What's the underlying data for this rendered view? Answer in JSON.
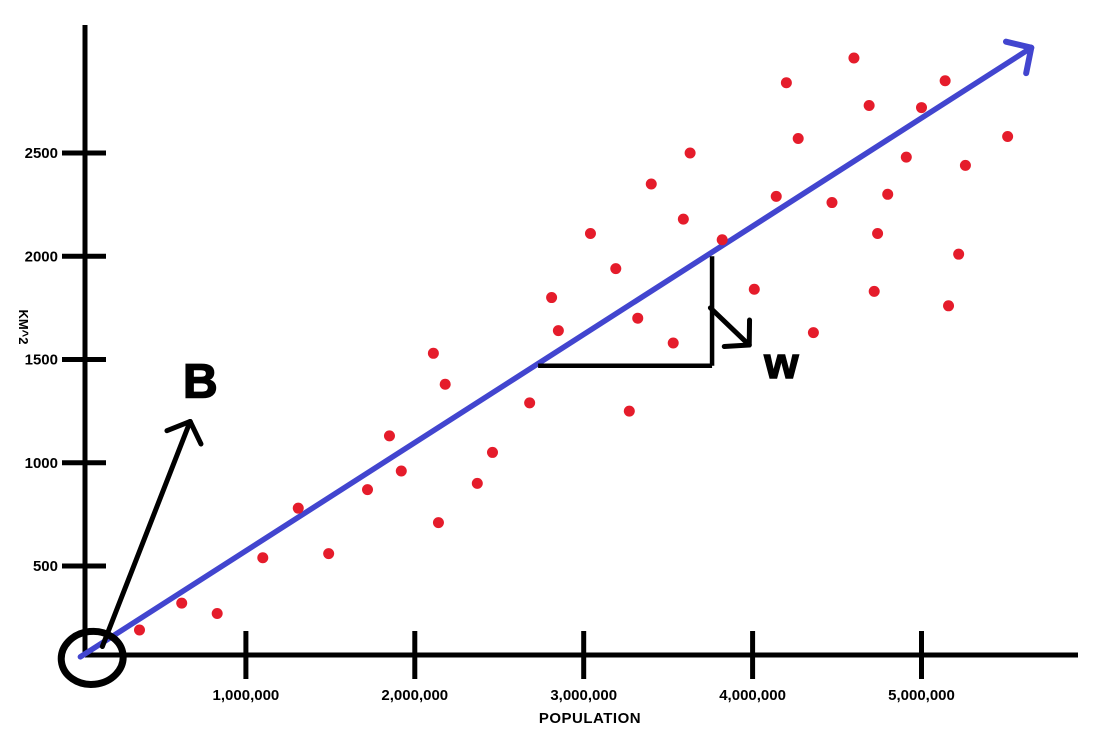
{
  "chart_data": {
    "type": "scatter",
    "title": "",
    "xlabel": "POPULATION",
    "ylabel": "KM^2",
    "grid": false,
    "legend": null,
    "xlim": [
      0,
      5950000
    ],
    "ylim": [
      0,
      3050
    ],
    "x_tick_labels": [
      "1,000,000",
      "2,000,000",
      "3,000,000",
      "4,000,000",
      "5,000,000"
    ],
    "x_tick_values": [
      1000000,
      2000000,
      3000000,
      4000000,
      5000000
    ],
    "y_tick_labels": [
      "500",
      "1000",
      "1500",
      "2000",
      "2500"
    ],
    "y_tick_values": [
      500,
      1000,
      1500,
      2000,
      2500
    ],
    "points_format": [
      "population",
      "km2"
    ],
    "points": [
      [
        370000,
        190
      ],
      [
        620000,
        320
      ],
      [
        830000,
        270
      ],
      [
        1100000,
        540
      ],
      [
        1310000,
        780
      ],
      [
        1490000,
        560
      ],
      [
        1720000,
        870
      ],
      [
        1850000,
        1130
      ],
      [
        1920000,
        960
      ],
      [
        2110000,
        1530
      ],
      [
        2140000,
        710
      ],
      [
        2180000,
        1380
      ],
      [
        2370000,
        900
      ],
      [
        2460000,
        1050
      ],
      [
        2680000,
        1290
      ],
      [
        2810000,
        1800
      ],
      [
        2850000,
        1640
      ],
      [
        3040000,
        2110
      ],
      [
        3190000,
        1940
      ],
      [
        3270000,
        1250
      ],
      [
        3320000,
        1700
      ],
      [
        3400000,
        2350
      ],
      [
        3530000,
        1580
      ],
      [
        3590000,
        2180
      ],
      [
        3630000,
        2500
      ],
      [
        3820000,
        2080
      ],
      [
        4010000,
        1840
      ],
      [
        4140000,
        2290
      ],
      [
        4200000,
        2840
      ],
      [
        4270000,
        2570
      ],
      [
        4360000,
        1630
      ],
      [
        4470000,
        2260
      ],
      [
        4600000,
        2960
      ],
      [
        4690000,
        2730
      ],
      [
        4720000,
        1830
      ],
      [
        4740000,
        2110
      ],
      [
        4800000,
        2300
      ],
      [
        4910000,
        2480
      ],
      [
        5000000,
        2720
      ],
      [
        5140000,
        2850
      ],
      [
        5160000,
        1760
      ],
      [
        5220000,
        2010
      ],
      [
        5260000,
        2440
      ],
      [
        5510000,
        2580
      ]
    ],
    "regression_line": {
      "style": "hand-drawn arrow",
      "from": {
        "population": 20000,
        "km2": 60
      },
      "to": {
        "population": 5650000,
        "km2": 3010
      }
    },
    "slope_triangle": {
      "run_from": {
        "population": 2730000,
        "km2": 1470
      },
      "corner": {
        "population": 3760000,
        "km2": 1470
      },
      "rise_to": {
        "population": 3760000,
        "km2": 2000
      }
    },
    "annotations": [
      {
        "id": "intercept",
        "label": "B",
        "arrow_from": {
          "population": 150000,
          "km2": 110
        },
        "arrow_to": {
          "population": 670000,
          "km2": 1200
        },
        "label_pos": {
          "population": 730000,
          "km2": 1390
        }
      },
      {
        "id": "slope",
        "label": "w",
        "arrow_from": {
          "population": 3750000,
          "km2": 1750
        },
        "arrow_to": {
          "population": 3980000,
          "km2": 1570
        },
        "label_pos": {
          "population": 4170000,
          "km2": 1480
        }
      }
    ],
    "origin_circle": {
      "population": 90000,
      "km2": 55
    },
    "colors": {
      "point": "#e51c2b",
      "line": "#4245cf",
      "axis": "#000000",
      "annotation": "#000000",
      "background": "#ffffff"
    }
  }
}
